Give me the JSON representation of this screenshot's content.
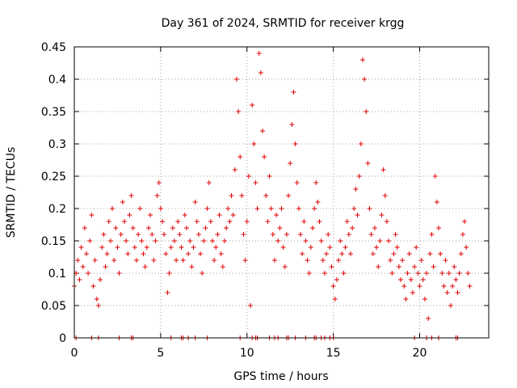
{
  "chart_data": {
    "type": "scatter",
    "title": "Day 361 of 2024, SRMTID for receiver krgg",
    "xlabel": "GPS time / hours",
    "ylabel": "SRMTID / TECUs",
    "xlim": [
      0,
      24
    ],
    "ylim": [
      0,
      0.45
    ],
    "xticks": [
      0,
      5,
      10,
      15,
      20
    ],
    "xtick_labels": [
      "0",
      "5",
      "10",
      "15",
      "20"
    ],
    "yticks": [
      0,
      0.05,
      0.1,
      0.15,
      0.2,
      0.25,
      0.3,
      0.35,
      0.4,
      0.45
    ],
    "ytick_labels": [
      "0",
      "0.05",
      "0.1",
      "0.15",
      "0.2",
      "0.25",
      "0.3",
      "0.35",
      "0.4",
      "0.45"
    ],
    "grid": true,
    "marker": "plus",
    "color": "#e00000",
    "series": [
      {
        "name": "SRMTID",
        "points": [
          [
            0.0,
            0.08
          ],
          [
            0.1,
            0.1
          ],
          [
            0.2,
            0.12
          ],
          [
            0.3,
            0.09
          ],
          [
            0.4,
            0.14
          ],
          [
            0.5,
            0.11
          ],
          [
            0.6,
            0.17
          ],
          [
            0.7,
            0.13
          ],
          [
            0.8,
            0.1
          ],
          [
            0.9,
            0.15
          ],
          [
            1.0,
            0.19
          ],
          [
            1.1,
            0.08
          ],
          [
            1.2,
            0.12
          ],
          [
            1.3,
            0.06
          ],
          [
            1.4,
            0.05
          ],
          [
            1.5,
            0.09
          ],
          [
            1.6,
            0.14
          ],
          [
            1.7,
            0.16
          ],
          [
            1.8,
            0.11
          ],
          [
            1.9,
            0.13
          ],
          [
            2.0,
            0.18
          ],
          [
            2.1,
            0.15
          ],
          [
            2.2,
            0.2
          ],
          [
            2.3,
            0.12
          ],
          [
            2.4,
            0.17
          ],
          [
            2.5,
            0.14
          ],
          [
            2.6,
            0.1
          ],
          [
            2.7,
            0.16
          ],
          [
            2.8,
            0.21
          ],
          [
            2.9,
            0.18
          ],
          [
            3.0,
            0.15
          ],
          [
            3.1,
            0.13
          ],
          [
            3.2,
            0.19
          ],
          [
            3.3,
            0.22
          ],
          [
            3.4,
            0.17
          ],
          [
            3.5,
            0.14
          ],
          [
            3.6,
            0.12
          ],
          [
            3.7,
            0.16
          ],
          [
            3.8,
            0.2
          ],
          [
            3.9,
            0.15
          ],
          [
            4.0,
            0.13
          ],
          [
            4.1,
            0.11
          ],
          [
            4.2,
            0.14
          ],
          [
            4.3,
            0.17
          ],
          [
            4.4,
            0.19
          ],
          [
            4.5,
            0.16
          ],
          [
            4.6,
            0.12
          ],
          [
            4.7,
            0.15
          ],
          [
            4.8,
            0.22
          ],
          [
            4.9,
            0.24
          ],
          [
            5.0,
            0.2
          ],
          [
            5.1,
            0.18
          ],
          [
            5.2,
            0.16
          ],
          [
            5.3,
            0.13
          ],
          [
            5.4,
            0.07
          ],
          [
            5.5,
            0.1
          ],
          [
            5.6,
            0.14
          ],
          [
            5.7,
            0.17
          ],
          [
            5.8,
            0.15
          ],
          [
            5.9,
            0.12
          ],
          [
            6.0,
            0.18
          ],
          [
            6.1,
            0.16
          ],
          [
            6.2,
            0.14
          ],
          [
            6.3,
            0.12
          ],
          [
            6.4,
            0.19
          ],
          [
            6.5,
            0.17
          ],
          [
            6.6,
            0.13
          ],
          [
            6.7,
            0.15
          ],
          [
            6.8,
            0.11
          ],
          [
            6.9,
            0.14
          ],
          [
            7.0,
            0.21
          ],
          [
            7.1,
            0.18
          ],
          [
            7.2,
            0.16
          ],
          [
            7.3,
            0.13
          ],
          [
            7.4,
            0.1
          ],
          [
            7.5,
            0.15
          ],
          [
            7.6,
            0.17
          ],
          [
            7.7,
            0.2
          ],
          [
            7.8,
            0.24
          ],
          [
            7.9,
            0.18
          ],
          [
            8.0,
            0.15
          ],
          [
            8.1,
            0.12
          ],
          [
            8.2,
            0.14
          ],
          [
            8.3,
            0.16
          ],
          [
            8.4,
            0.19
          ],
          [
            8.5,
            0.13
          ],
          [
            8.6,
            0.11
          ],
          [
            8.7,
            0.15
          ],
          [
            8.8,
            0.17
          ],
          [
            8.9,
            0.2
          ],
          [
            9.0,
            0.18
          ],
          [
            9.1,
            0.22
          ],
          [
            9.2,
            0.19
          ],
          [
            9.3,
            0.26
          ],
          [
            9.4,
            0.4
          ],
          [
            9.5,
            0.35
          ],
          [
            9.6,
            0.28
          ],
          [
            9.7,
            0.22
          ],
          [
            9.8,
            0.16
          ],
          [
            9.9,
            0.12
          ],
          [
            10.0,
            0.18
          ],
          [
            10.1,
            0.25
          ],
          [
            10.2,
            0.05
          ],
          [
            10.3,
            0.36
          ],
          [
            10.4,
            0.3
          ],
          [
            10.5,
            0.24
          ],
          [
            10.6,
            0.2
          ],
          [
            10.7,
            0.44
          ],
          [
            10.8,
            0.41
          ],
          [
            10.9,
            0.32
          ],
          [
            11.0,
            0.28
          ],
          [
            11.1,
            0.22
          ],
          [
            11.2,
            0.18
          ],
          [
            11.3,
            0.25
          ],
          [
            11.4,
            0.2
          ],
          [
            11.5,
            0.16
          ],
          [
            11.6,
            0.12
          ],
          [
            11.7,
            0.19
          ],
          [
            11.8,
            0.15
          ],
          [
            11.9,
            0.17
          ],
          [
            12.0,
            0.2
          ],
          [
            12.1,
            0.14
          ],
          [
            12.2,
            0.11
          ],
          [
            12.3,
            0.16
          ],
          [
            12.4,
            0.22
          ],
          [
            12.5,
            0.27
          ],
          [
            12.6,
            0.33
          ],
          [
            12.7,
            0.38
          ],
          [
            12.8,
            0.3
          ],
          [
            12.9,
            0.24
          ],
          [
            13.0,
            0.2
          ],
          [
            13.1,
            0.16
          ],
          [
            13.2,
            0.13
          ],
          [
            13.3,
            0.18
          ],
          [
            13.4,
            0.15
          ],
          [
            13.5,
            0.12
          ],
          [
            13.6,
            0.1
          ],
          [
            13.7,
            0.14
          ],
          [
            13.8,
            0.17
          ],
          [
            13.9,
            0.2
          ],
          [
            14.0,
            0.24
          ],
          [
            14.1,
            0.21
          ],
          [
            14.2,
            0.18
          ],
          [
            14.3,
            0.15
          ],
          [
            14.4,
            0.12
          ],
          [
            14.5,
            0.1
          ],
          [
            14.6,
            0.13
          ],
          [
            14.7,
            0.16
          ],
          [
            14.8,
            0.14
          ],
          [
            14.9,
            0.11
          ],
          [
            15.0,
            0.08
          ],
          [
            15.1,
            0.06
          ],
          [
            15.2,
            0.09
          ],
          [
            15.3,
            0.12
          ],
          [
            15.4,
            0.15
          ],
          [
            15.5,
            0.13
          ],
          [
            15.6,
            0.1
          ],
          [
            15.7,
            0.14
          ],
          [
            15.8,
            0.18
          ],
          [
            15.9,
            0.16
          ],
          [
            16.0,
            0.13
          ],
          [
            16.1,
            0.17
          ],
          [
            16.2,
            0.2
          ],
          [
            16.3,
            0.23
          ],
          [
            16.4,
            0.19
          ],
          [
            16.5,
            0.25
          ],
          [
            16.6,
            0.3
          ],
          [
            16.7,
            0.43
          ],
          [
            16.8,
            0.4
          ],
          [
            16.9,
            0.35
          ],
          [
            17.0,
            0.27
          ],
          [
            17.1,
            0.2
          ],
          [
            17.2,
            0.16
          ],
          [
            17.3,
            0.13
          ],
          [
            17.4,
            0.17
          ],
          [
            17.5,
            0.14
          ],
          [
            17.6,
            0.11
          ],
          [
            17.7,
            0.15
          ],
          [
            17.8,
            0.19
          ],
          [
            17.9,
            0.26
          ],
          [
            18.0,
            0.22
          ],
          [
            18.1,
            0.18
          ],
          [
            18.2,
            0.15
          ],
          [
            18.3,
            0.12
          ],
          [
            18.4,
            0.1
          ],
          [
            18.5,
            0.13
          ],
          [
            18.6,
            0.16
          ],
          [
            18.7,
            0.14
          ],
          [
            18.8,
            0.11
          ],
          [
            18.9,
            0.09
          ],
          [
            19.0,
            0.12
          ],
          [
            19.1,
            0.08
          ],
          [
            19.2,
            0.06
          ],
          [
            19.3,
            0.1
          ],
          [
            19.4,
            0.13
          ],
          [
            19.5,
            0.09
          ],
          [
            19.6,
            0.07
          ],
          [
            19.7,
            0.11
          ],
          [
            19.8,
            0.14
          ],
          [
            19.9,
            0.1
          ],
          [
            20.0,
            0.08
          ],
          [
            20.1,
            0.12
          ],
          [
            20.2,
            0.09
          ],
          [
            20.3,
            0.06
          ],
          [
            20.4,
            0.1
          ],
          [
            20.5,
            0.03
          ],
          [
            20.6,
            0.13
          ],
          [
            20.7,
            0.16
          ],
          [
            20.8,
            0.11
          ],
          [
            20.9,
            0.25
          ],
          [
            21.0,
            0.21
          ],
          [
            21.1,
            0.17
          ],
          [
            21.2,
            0.13
          ],
          [
            21.3,
            0.1
          ],
          [
            21.4,
            0.08
          ],
          [
            21.5,
            0.12
          ],
          [
            21.6,
            0.07
          ],
          [
            21.7,
            0.1
          ],
          [
            21.8,
            0.05
          ],
          [
            21.9,
            0.08
          ],
          [
            22.0,
            0.11
          ],
          [
            22.1,
            0.09
          ],
          [
            22.2,
            0.07
          ],
          [
            22.3,
            0.1
          ],
          [
            22.4,
            0.13
          ],
          [
            22.5,
            0.16
          ],
          [
            22.6,
            0.18
          ],
          [
            22.7,
            0.14
          ],
          [
            22.8,
            0.1
          ],
          [
            22.9,
            0.08
          ]
        ]
      }
    ],
    "zero_values_x": [
      0.1,
      1.0,
      1.4,
      2.6,
      3.3,
      3.4,
      5.6,
      6.2,
      6.3,
      6.6,
      7.0,
      7.7,
      9.6,
      10.3,
      10.5,
      10.6,
      11.3,
      11.6,
      11.8,
      12.3,
      12.4,
      12.8,
      13.4,
      13.9,
      14.0,
      14.3,
      14.5,
      14.8,
      15.0,
      19.7,
      20.4,
      20.7,
      21.1,
      22.1,
      22.2
    ]
  }
}
